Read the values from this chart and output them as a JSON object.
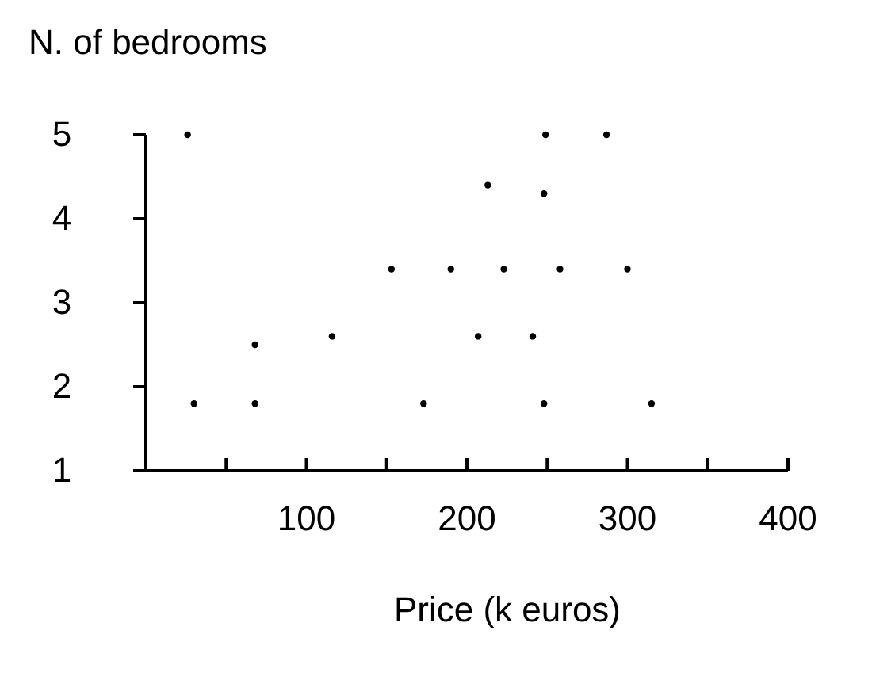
{
  "chart_data": {
    "type": "scatter",
    "title": "N. of bedrooms",
    "xlabel": "Price  (k euros)",
    "x": [
      30,
      26,
      68,
      68,
      116,
      153,
      173,
      190,
      207,
      213,
      223,
      241,
      248,
      249,
      248,
      258,
      287,
      300,
      315
    ],
    "values": [
      1.8,
      5,
      1.8,
      2.5,
      2.6,
      3.4,
      1.8,
      3.4,
      2.6,
      4.4,
      3.4,
      2.6,
      4.3,
      5,
      1.8,
      3.4,
      5,
      3.4,
      1.8
    ],
    "color": "#000000",
    "marker": "circle",
    "xlim": [
      0,
      400
    ],
    "xticks": [
      {
        "value": 0,
        "label": null
      },
      {
        "value": 50,
        "label": null
      },
      100,
      {
        "value": 150,
        "label": null
      },
      200,
      {
        "value": 250,
        "label": null
      },
      300,
      {
        "value": 350,
        "label": null
      },
      400
    ],
    "ylim": [
      1,
      5
    ],
    "yticks": [
      1,
      2,
      3,
      4,
      5
    ],
    "grid": false
  }
}
